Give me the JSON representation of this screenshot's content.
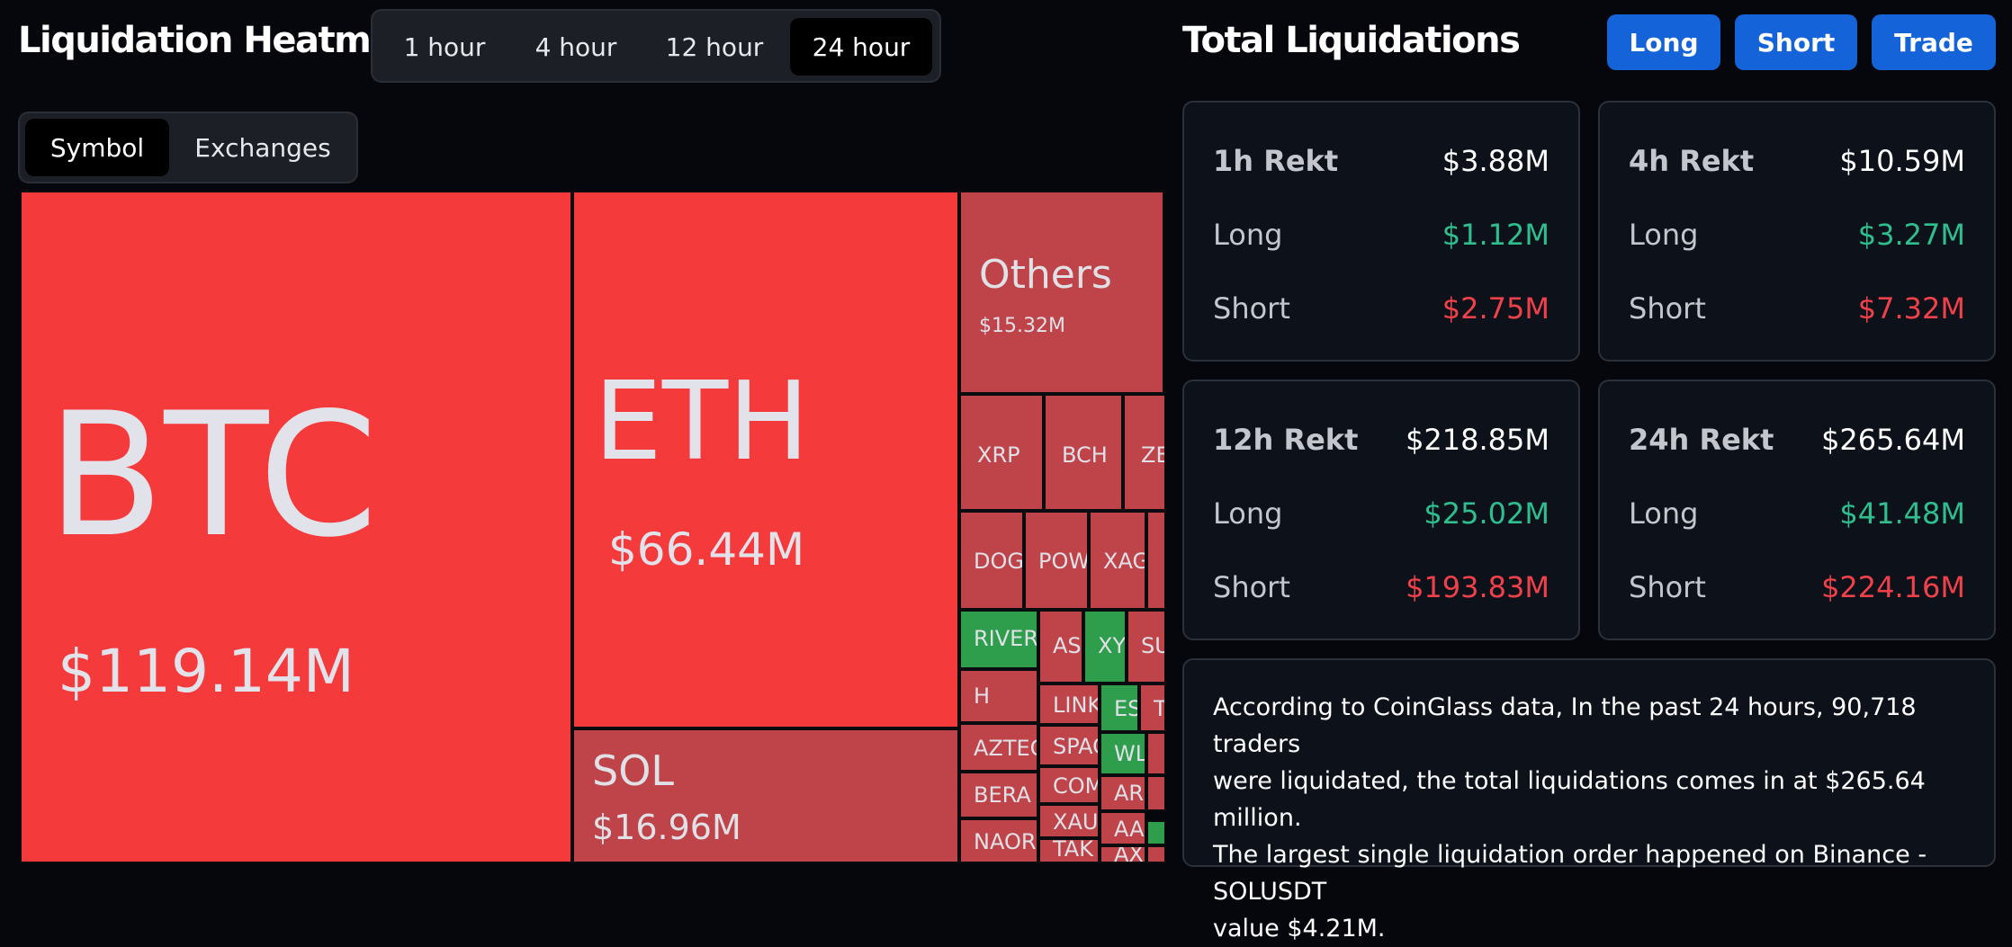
{
  "heatmap": {
    "title": "Liquidation Heatmap",
    "time_tabs": [
      {
        "label": "1 hour",
        "active": false
      },
      {
        "label": "4 hour",
        "active": false
      },
      {
        "label": "12 hour",
        "active": false
      },
      {
        "label": "24 hour",
        "active": true
      }
    ],
    "view_tabs": [
      {
        "label": "Symbol",
        "active": true
      },
      {
        "label": "Exchanges",
        "active": false
      }
    ],
    "tiles": {
      "btc": {
        "symbol": "BTC",
        "value": "$119.14M"
      },
      "eth": {
        "symbol": "ETH",
        "value": "$66.44M"
      },
      "sol": {
        "symbol": "SOL",
        "value": "$16.96M"
      },
      "others": {
        "symbol": "Others",
        "value": "$15.32M"
      },
      "small": [
        "XRP",
        "BCH",
        "ZE",
        "DOG",
        "POW",
        "XAG",
        "RIVER",
        "AS",
        "XY",
        "SU",
        "H",
        "LINK",
        "ES",
        "T",
        "AZTEC",
        "SPAC",
        "WL",
        "BERA",
        "COM",
        "AR",
        "XAU",
        "AA",
        "NAOR",
        "TAK",
        "AX"
      ]
    }
  },
  "totals": {
    "title": "Total Liquidations",
    "buttons": {
      "long": "Long",
      "short": "Short",
      "trade": "Trade"
    },
    "cards": [
      {
        "label": "1h Rekt",
        "total": "$3.88M",
        "long_label": "Long",
        "long": "$1.12M",
        "short_label": "Short",
        "short": "$2.75M"
      },
      {
        "label": "4h Rekt",
        "total": "$10.59M",
        "long_label": "Long",
        "long": "$3.27M",
        "short_label": "Short",
        "short": "$7.32M"
      },
      {
        "label": "12h Rekt",
        "total": "$218.85M",
        "long_label": "Long",
        "long": "$25.02M",
        "short_label": "Short",
        "short": "$193.83M"
      },
      {
        "label": "24h Rekt",
        "total": "$265.64M",
        "long_label": "Long",
        "long": "$41.48M",
        "short_label": "Short",
        "short": "$224.16M"
      }
    ],
    "summary_lines": [
      "According to CoinGlass data, In the past 24 hours, 90,718 traders",
      "were liquidated, the total liquidations comes in at $265.64 million.",
      "The largest single liquidation order happened on Binance - SOLUSDT",
      "value $4.21M."
    ]
  },
  "colors": {
    "long_green": "#2fbf8f",
    "short_red": "#f0414a",
    "accent_blue": "#1463d8",
    "tile_red": "#f53a3c",
    "tile_dark_red": "#bf444a",
    "tile_green": "#2e9e4c"
  }
}
